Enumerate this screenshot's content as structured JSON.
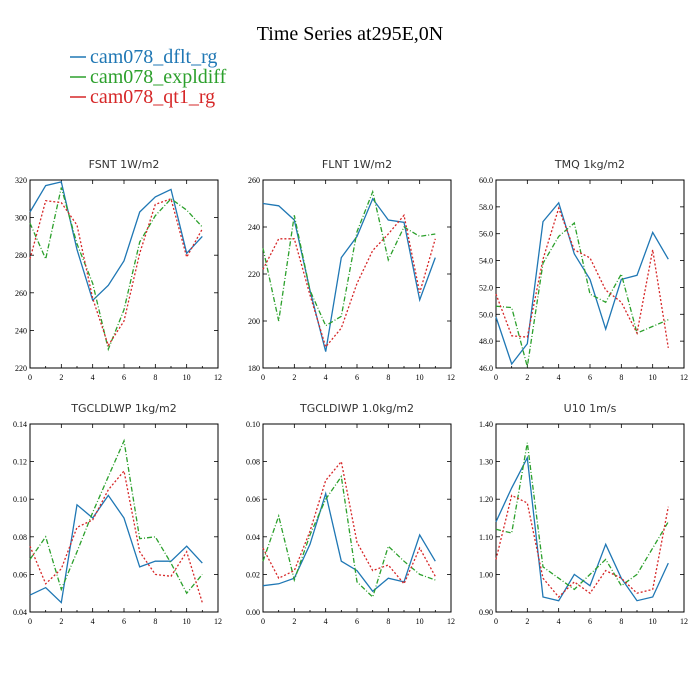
{
  "title": "Time Series at295E,0N",
  "colors": {
    "dflt": "#1f77b4",
    "expl": "#2ca02c",
    "qt1": "#d62728"
  },
  "legend": [
    {
      "label": "cam078_dflt_rg",
      "color": "#1f77b4"
    },
    {
      "label": "cam078_expldiff",
      "color": "#2ca02c"
    },
    {
      "label": "cam078_qt1_rg",
      "color": "#d62728"
    }
  ],
  "chart_data": [
    {
      "type": "line",
      "title": "FSNT   1W/m2",
      "x": [
        0,
        1,
        2,
        3,
        4,
        5,
        6,
        7,
        8,
        9,
        10,
        11
      ],
      "xlim": [
        0,
        12
      ],
      "xticks": [
        "0",
        "2",
        "4",
        "6",
        "8",
        "10",
        "12"
      ],
      "ylim": [
        220,
        320
      ],
      "yticks": [
        "220",
        "240",
        "260",
        "280",
        "300",
        "320"
      ],
      "series": [
        {
          "name": "cam078_dflt_rg",
          "values": [
            303,
            317,
            319,
            283,
            256,
            264,
            277,
            303,
            311,
            315,
            281,
            290
          ]
        },
        {
          "name": "cam078_expldiff",
          "values": [
            297,
            278,
            316,
            286,
            265,
            230,
            251,
            287,
            301,
            310,
            304,
            295
          ]
        },
        {
          "name": "cam078_qt1_rg",
          "values": [
            278,
            309,
            308,
            296,
            257,
            232,
            245,
            281,
            307,
            310,
            279,
            294
          ]
        }
      ]
    },
    {
      "type": "line",
      "title": "FLNT   1W/m2",
      "x": [
        0,
        1,
        2,
        3,
        4,
        5,
        6,
        7,
        8,
        9,
        10,
        11
      ],
      "xlim": [
        0,
        12
      ],
      "xticks": [
        "0",
        "2",
        "4",
        "6",
        "8",
        "10",
        "12"
      ],
      "ylim": [
        180,
        260
      ],
      "yticks": [
        "180",
        "200",
        "220",
        "240",
        "260"
      ],
      "series": [
        {
          "name": "cam078_dflt_rg",
          "values": [
            250,
            249,
            243,
            213,
            187,
            227,
            236,
            252,
            243,
            242,
            209,
            227
          ]
        },
        {
          "name": "cam078_expldiff",
          "values": [
            231,
            200,
            245,
            213,
            198,
            202,
            238,
            255,
            226,
            240,
            236,
            237
          ]
        },
        {
          "name": "cam078_qt1_rg",
          "values": [
            222,
            235,
            235,
            211,
            189,
            197,
            216,
            230,
            237,
            245,
            212,
            235
          ]
        }
      ]
    },
    {
      "type": "line",
      "title": "TMQ   1kg/m2",
      "x": [
        0,
        1,
        2,
        3,
        4,
        5,
        6,
        7,
        8,
        9,
        10,
        11
      ],
      "xlim": [
        0,
        12
      ],
      "xticks": [
        "0",
        "2",
        "4",
        "6",
        "8",
        "10",
        "12"
      ],
      "ylim": [
        46.0,
        60.0
      ],
      "yticks": [
        "46.0",
        "48.0",
        "50.0",
        "52.0",
        "54.0",
        "56.0",
        "58.0",
        "60.0"
      ],
      "series": [
        {
          "name": "cam078_dflt_rg",
          "values": [
            49.8,
            46.3,
            47.8,
            56.9,
            58.3,
            54.5,
            52.6,
            48.9,
            52.6,
            52.9,
            56.1,
            54.1
          ]
        },
        {
          "name": "cam078_expldiff",
          "values": [
            50.6,
            50.5,
            46.1,
            53.8,
            55.8,
            56.8,
            51.5,
            50.9,
            53.0,
            48.6,
            49.1,
            49.6
          ]
        },
        {
          "name": "cam078_qt1_rg",
          "values": [
            51.5,
            48.4,
            48.3,
            54.1,
            57.9,
            54.8,
            54.2,
            51.8,
            50.9,
            48.6,
            54.8,
            47.5
          ]
        }
      ]
    },
    {
      "type": "line",
      "title": "TGCLDLWP   1kg/m2",
      "x": [
        0,
        1,
        2,
        3,
        4,
        5,
        6,
        7,
        8,
        9,
        10,
        11
      ],
      "xlim": [
        0,
        12
      ],
      "xticks": [
        "0",
        "2",
        "4",
        "6",
        "8",
        "10",
        "12"
      ],
      "ylim": [
        0.04,
        0.14
      ],
      "yticks": [
        "0.04",
        "0.06",
        "0.08",
        "0.10",
        "0.12",
        "0.14"
      ],
      "series": [
        {
          "name": "cam078_dflt_rg",
          "values": [
            0.049,
            0.053,
            0.045,
            0.097,
            0.09,
            0.102,
            0.09,
            0.064,
            0.067,
            0.067,
            0.075,
            0.066
          ]
        },
        {
          "name": "cam078_expldiff",
          "values": [
            0.068,
            0.08,
            0.052,
            0.072,
            0.093,
            0.112,
            0.131,
            0.079,
            0.08,
            0.066,
            0.05,
            0.06
          ]
        },
        {
          "name": "cam078_qt1_rg",
          "values": [
            0.075,
            0.055,
            0.063,
            0.085,
            0.089,
            0.105,
            0.115,
            0.072,
            0.06,
            0.059,
            0.072,
            0.045
          ]
        }
      ]
    },
    {
      "type": "line",
      "title": "TGCLDIWP   1.0kg/m2",
      "x": [
        0,
        1,
        2,
        3,
        4,
        5,
        6,
        7,
        8,
        9,
        10,
        11
      ],
      "xlim": [
        0,
        12
      ],
      "xticks": [
        "0",
        "2",
        "4",
        "6",
        "8",
        "10",
        "12"
      ],
      "ylim": [
        0.0,
        0.1
      ],
      "yticks": [
        "0.00",
        "0.02",
        "0.04",
        "0.06",
        "0.08",
        "0.10"
      ],
      "series": [
        {
          "name": "cam078_dflt_rg",
          "values": [
            0.014,
            0.015,
            0.018,
            0.036,
            0.063,
            0.027,
            0.022,
            0.011,
            0.018,
            0.016,
            0.041,
            0.027
          ]
        },
        {
          "name": "cam078_expldiff",
          "values": [
            0.027,
            0.051,
            0.017,
            0.041,
            0.06,
            0.072,
            0.016,
            0.008,
            0.035,
            0.027,
            0.02,
            0.017
          ]
        },
        {
          "name": "cam078_qt1_rg",
          "values": [
            0.034,
            0.018,
            0.022,
            0.043,
            0.07,
            0.08,
            0.037,
            0.022,
            0.025,
            0.015,
            0.034,
            0.019
          ]
        }
      ]
    },
    {
      "type": "line",
      "title": "U10   1m/s",
      "x": [
        0,
        1,
        2,
        3,
        4,
        5,
        6,
        7,
        8,
        9,
        10,
        11
      ],
      "xlim": [
        0,
        12
      ],
      "xticks": [
        "0",
        "2",
        "4",
        "6",
        "8",
        "10",
        "12"
      ],
      "ylim": [
        0.9,
        1.4
      ],
      "yticks": [
        "0.90",
        "1.00",
        "1.10",
        "1.20",
        "1.30",
        "1.40"
      ],
      "series": [
        {
          "name": "cam078_dflt_rg",
          "values": [
            1.14,
            1.23,
            1.31,
            0.94,
            0.93,
            1.0,
            0.97,
            1.08,
            0.99,
            0.93,
            0.94,
            1.03
          ]
        },
        {
          "name": "cam078_expldiff",
          "values": [
            1.12,
            1.11,
            1.35,
            1.02,
            0.99,
            0.96,
            1.0,
            1.04,
            0.97,
            1.0,
            1.07,
            1.14
          ]
        },
        {
          "name": "cam078_qt1_rg",
          "values": [
            1.04,
            1.21,
            1.19,
            0.99,
            0.94,
            0.98,
            0.95,
            1.01,
            0.99,
            0.95,
            0.96,
            1.18
          ]
        }
      ]
    }
  ]
}
